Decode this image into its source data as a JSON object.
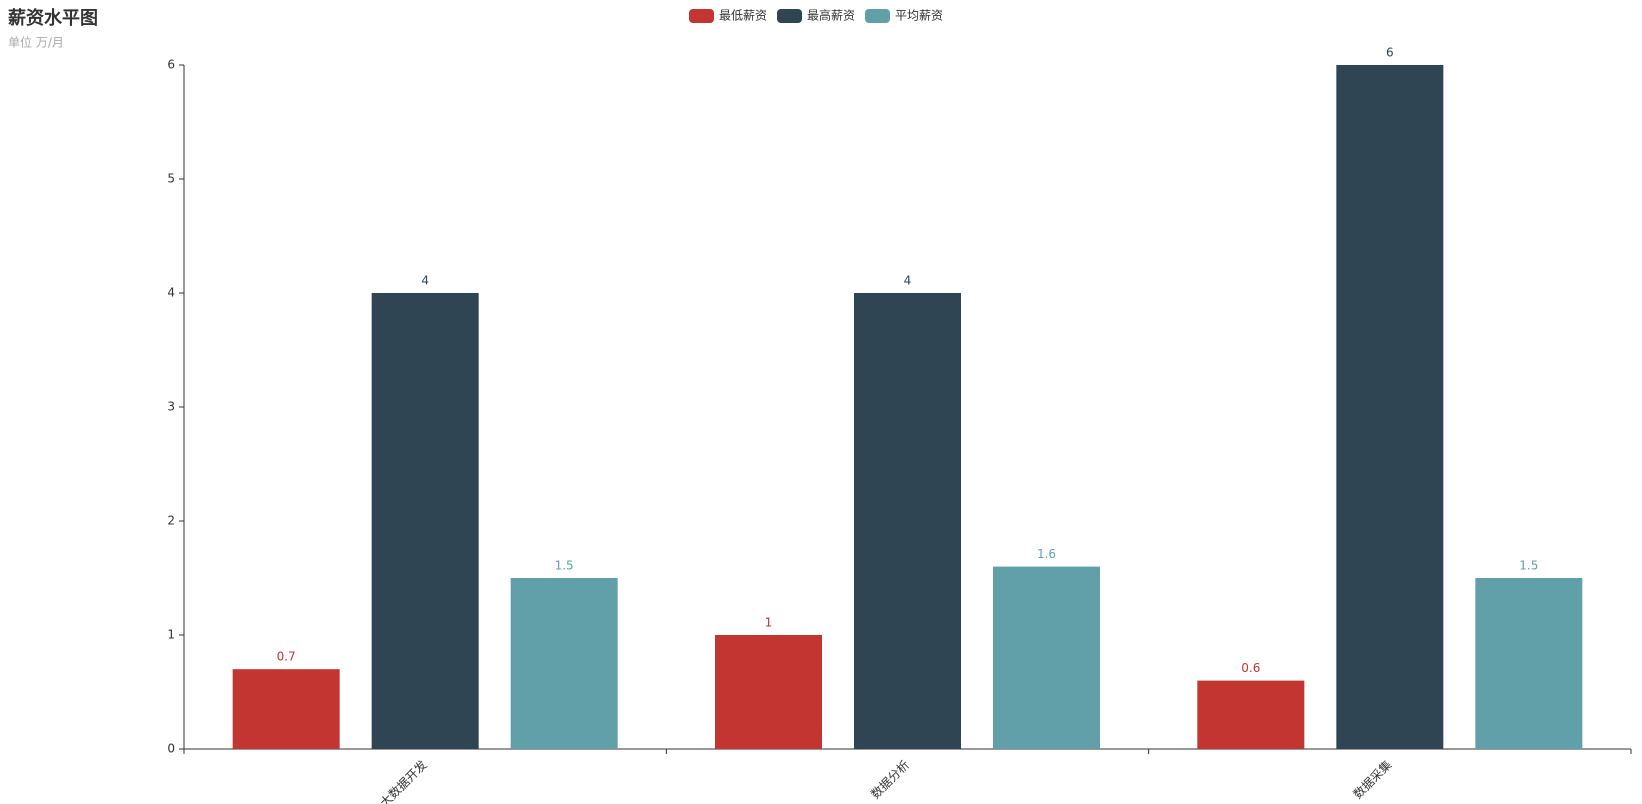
{
  "chart_data": {
    "type": "bar",
    "title": "薪资水平图",
    "subtitle": "单位 万/月",
    "categories": [
      "大数据开发",
      "数据分析",
      "数据采集"
    ],
    "series": [
      {
        "name": "最低薪资",
        "color": "#c23531",
        "values": [
          0.7,
          1,
          0.6
        ]
      },
      {
        "name": "最高薪资",
        "color": "#2f4554",
        "values": [
          4,
          4,
          6
        ]
      },
      {
        "name": "平均薪资",
        "color": "#61a0a8",
        "values": [
          1.5,
          1.6,
          1.5
        ]
      }
    ],
    "ylim": [
      0,
      6
    ],
    "yticks": [
      0,
      1,
      2,
      3,
      4,
      5,
      6
    ],
    "grid": false,
    "legend": "top"
  }
}
